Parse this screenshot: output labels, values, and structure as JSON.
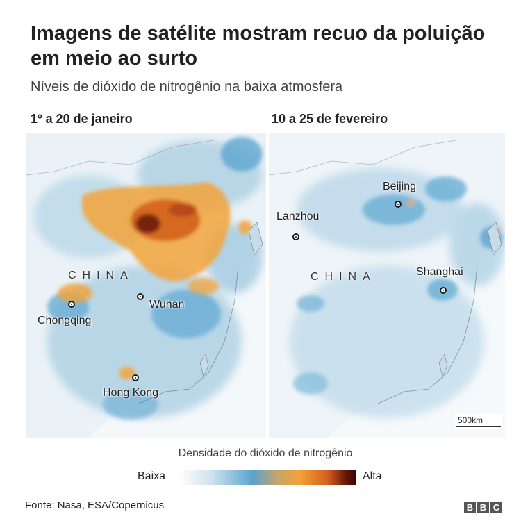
{
  "title": "Imagens de satélite mostram recuo da poluição em meio ao surto",
  "subtitle": "Níveis de dióxido de nitrogênio na baixa atmosfera",
  "panels": [
    {
      "label": "1º a 20 de janeiro",
      "country": "CHINA",
      "cities": [
        "Chongqing",
        "Wuhan",
        "Hong Kong"
      ]
    },
    {
      "label": "10 a 25 de fevereiro",
      "country": "CHINA",
      "cities": [
        "Beijing",
        "Lanzhou",
        "Shanghai"
      ],
      "scale": "500km"
    }
  ],
  "legend": {
    "title": "Densidade do dióxido de nitrogênio",
    "low": "Baixa",
    "high": "Alta",
    "colors": [
      "#ffffff",
      "#cfe3ee",
      "#5aa3cc",
      "#f2a33a",
      "#d4601d",
      "#3a0606"
    ]
  },
  "source": "Fonte: Nasa, ESA/Copernicus",
  "logo": [
    "B",
    "B",
    "C"
  ]
}
